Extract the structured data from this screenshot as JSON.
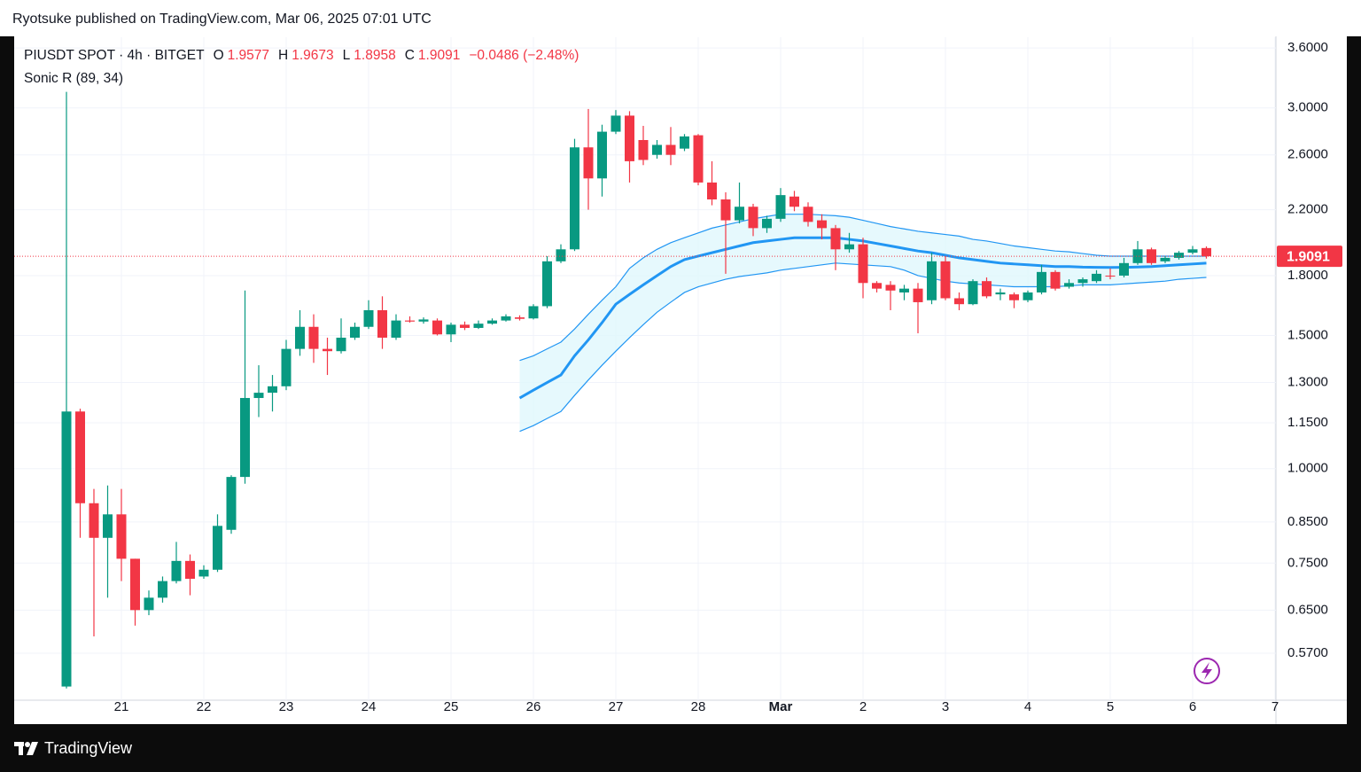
{
  "header": {
    "publisher": "Ryotsuke published on TradingView.com, Mar 06, 2025 07:01 UTC",
    "brand": "TradingView"
  },
  "chart_data": {
    "type": "candlestick",
    "symbol": "PIUSDT SPOT · 4h · BITGET",
    "ohlc_letters": [
      "O",
      "H",
      "L",
      "C"
    ],
    "change": "−0.0486 (−2.48%)",
    "indicator": "Sonic R (89, 34)",
    "log_scale": true,
    "grid": true,
    "up_color": "#089981",
    "down_color": "#f23645",
    "band_color": "#2196f3",
    "band_fill": "#e0f7fc",
    "ylim": [
      0.494,
      3.72
    ],
    "yticks": [
      {
        "value": 3.6,
        "label": "3.6000"
      },
      {
        "value": 3.0,
        "label": "3.0000"
      },
      {
        "value": 2.6,
        "label": "2.6000"
      },
      {
        "value": 2.2,
        "label": "2.2000"
      },
      {
        "value": 1.8,
        "label": "1.8000"
      },
      {
        "value": 1.5,
        "label": "1.5000"
      },
      {
        "value": 1.3,
        "label": "1.3000"
      },
      {
        "value": 1.15,
        "label": "1.1500"
      },
      {
        "value": 1.0,
        "label": "1.0000"
      },
      {
        "value": 0.85,
        "label": "0.8500"
      },
      {
        "value": 0.75,
        "label": "0.7500"
      },
      {
        "value": 0.65,
        "label": "0.6500"
      },
      {
        "value": 0.57,
        "label": "0.5700"
      }
    ],
    "categories": [
      null,
      null,
      null,
      null,
      "21",
      null,
      null,
      null,
      null,
      null,
      "22",
      null,
      null,
      null,
      null,
      null,
      "23",
      null,
      null,
      null,
      null,
      null,
      "24",
      null,
      null,
      null,
      null,
      null,
      "25",
      null,
      null,
      null,
      null,
      null,
      "26",
      null,
      null,
      null,
      null,
      null,
      "27",
      null,
      null,
      null,
      null,
      null,
      "28",
      null,
      null,
      null,
      null,
      null,
      "Mar",
      null,
      null,
      null,
      null,
      null,
      "2",
      null,
      null,
      null,
      null,
      null,
      "3",
      null,
      null,
      null,
      null,
      null,
      "4",
      null,
      null,
      null,
      null,
      null,
      "5",
      null,
      null,
      null,
      null,
      null,
      "6",
      null,
      null,
      null,
      null,
      null,
      "7"
    ],
    "open": [
      0.515,
      1.19,
      0.9,
      0.81,
      0.87,
      0.76,
      0.65,
      0.675,
      0.71,
      0.755,
      0.72,
      0.735,
      0.83,
      0.975,
      1.24,
      1.26,
      1.285,
      1.44,
      1.54,
      1.44,
      1.43,
      1.49,
      1.54,
      1.62,
      1.49,
      1.57,
      1.565,
      1.57,
      1.505,
      1.55,
      1.535,
      1.555,
      1.57,
      1.585,
      1.58,
      1.64,
      1.88,
      1.95,
      2.66,
      2.42,
      2.79,
      2.93,
      2.72,
      2.6,
      2.68,
      2.65,
      2.76,
      2.39,
      2.27,
      2.13,
      2.22,
      2.08,
      2.14,
      2.29,
      2.22,
      2.13,
      2.08,
      1.95,
      1.98,
      1.76,
      1.75,
      1.71,
      1.73,
      1.67,
      1.88,
      1.68,
      1.65,
      1.77,
      1.7,
      1.7,
      1.67,
      1.71,
      1.82,
      1.74,
      1.76,
      1.77,
      1.8,
      1.8,
      1.87,
      1.95,
      1.88,
      1.9,
      1.93,
      1.9577,
      null,
      null,
      null,
      null,
      null
    ],
    "high": [
      3.15,
      1.2,
      0.94,
      0.95,
      0.94,
      0.76,
      0.69,
      0.72,
      0.8,
      0.77,
      0.745,
      0.87,
      0.98,
      1.72,
      1.37,
      1.33,
      1.48,
      1.62,
      1.6,
      1.49,
      1.58,
      1.56,
      1.67,
      1.69,
      1.6,
      1.59,
      1.585,
      1.58,
      1.56,
      1.565,
      1.57,
      1.58,
      1.6,
      1.595,
      1.65,
      1.91,
      1.98,
      2.73,
      2.99,
      2.85,
      2.98,
      2.97,
      2.84,
      2.72,
      2.83,
      2.77,
      2.77,
      2.55,
      2.32,
      2.39,
      2.24,
      2.16,
      2.35,
      2.33,
      2.25,
      2.17,
      2.1,
      2.05,
      2.02,
      1.77,
      1.77,
      1.75,
      1.76,
      1.93,
      1.91,
      1.71,
      1.78,
      1.79,
      1.73,
      1.71,
      1.72,
      1.86,
      1.83,
      1.78,
      1.79,
      1.83,
      1.84,
      1.9,
      2.0,
      1.96,
      1.91,
      1.94,
      1.97,
      1.9673,
      null,
      null,
      null,
      null,
      null
    ],
    "low": [
      0.512,
      0.81,
      0.6,
      0.675,
      0.71,
      0.62,
      0.64,
      0.665,
      0.705,
      0.68,
      0.715,
      0.73,
      0.82,
      0.955,
      1.17,
      1.19,
      1.27,
      1.41,
      1.38,
      1.33,
      1.42,
      1.48,
      1.53,
      1.44,
      1.48,
      1.56,
      1.555,
      1.5,
      1.47,
      1.525,
      1.53,
      1.55,
      1.565,
      1.57,
      1.575,
      1.63,
      1.87,
      1.94,
      2.2,
      2.29,
      2.77,
      2.39,
      2.52,
      2.57,
      2.52,
      2.63,
      2.37,
      2.23,
      1.81,
      2.11,
      2.03,
      2.05,
      2.12,
      2.19,
      2.09,
      2.01,
      1.83,
      1.93,
      1.68,
      1.71,
      1.62,
      1.67,
      1.51,
      1.65,
      1.67,
      1.62,
      1.645,
      1.68,
      1.67,
      1.63,
      1.66,
      1.7,
      1.72,
      1.73,
      1.74,
      1.76,
      1.78,
      1.79,
      1.86,
      1.86,
      1.87,
      1.89,
      1.92,
      1.8958,
      null,
      null,
      null,
      null,
      null
    ],
    "close": [
      1.19,
      0.9,
      0.81,
      0.87,
      0.76,
      0.65,
      0.675,
      0.71,
      0.755,
      0.715,
      0.735,
      0.84,
      0.975,
      1.24,
      1.26,
      1.285,
      1.44,
      1.54,
      1.44,
      1.43,
      1.49,
      1.54,
      1.62,
      1.49,
      1.57,
      1.565,
      1.575,
      1.505,
      1.55,
      1.535,
      1.555,
      1.57,
      1.59,
      1.578,
      1.64,
      1.88,
      1.95,
      2.66,
      2.42,
      2.79,
      2.93,
      2.55,
      2.56,
      2.68,
      2.6,
      2.75,
      2.39,
      2.27,
      2.13,
      2.22,
      2.08,
      2.14,
      2.3,
      2.22,
      2.12,
      2.08,
      1.95,
      1.98,
      1.76,
      1.73,
      1.72,
      1.73,
      1.66,
      1.88,
      1.68,
      1.65,
      1.77,
      1.69,
      1.71,
      1.67,
      1.71,
      1.82,
      1.73,
      1.76,
      1.78,
      1.81,
      1.795,
      1.87,
      1.95,
      1.87,
      1.9,
      1.93,
      1.95,
      1.9091,
      null,
      null,
      null,
      null,
      null
    ],
    "band_upper": [
      null,
      null,
      null,
      null,
      null,
      null,
      null,
      null,
      null,
      null,
      null,
      null,
      null,
      null,
      null,
      null,
      null,
      null,
      null,
      null,
      null,
      null,
      null,
      null,
      null,
      null,
      null,
      null,
      null,
      null,
      null,
      null,
      null,
      1.39,
      1.41,
      1.44,
      1.47,
      1.53,
      1.6,
      1.67,
      1.74,
      1.84,
      1.9,
      1.95,
      1.99,
      2.02,
      2.05,
      2.08,
      2.1,
      2.12,
      2.14,
      2.155,
      2.17,
      2.17,
      2.17,
      2.165,
      2.16,
      2.15,
      2.13,
      2.11,
      2.09,
      2.075,
      2.06,
      2.05,
      2.04,
      2.03,
      2.01,
      2.0,
      1.985,
      1.97,
      1.96,
      1.95,
      1.94,
      1.935,
      1.925,
      1.915,
      1.91,
      1.91,
      1.91,
      1.91,
      1.91,
      1.91,
      1.91,
      1.91,
      null,
      null,
      null,
      null,
      null
    ],
    "band_middle": [
      null,
      null,
      null,
      null,
      null,
      null,
      null,
      null,
      null,
      null,
      null,
      null,
      null,
      null,
      null,
      null,
      null,
      null,
      null,
      null,
      null,
      null,
      null,
      null,
      null,
      null,
      null,
      null,
      null,
      null,
      null,
      null,
      null,
      1.24,
      1.27,
      1.3,
      1.33,
      1.41,
      1.48,
      1.56,
      1.65,
      1.7,
      1.75,
      1.8,
      1.85,
      1.89,
      1.91,
      1.93,
      1.95,
      1.97,
      1.99,
      2.0,
      2.01,
      2.02,
      2.02,
      2.02,
      2.02,
      2.01,
      2.0,
      1.985,
      1.97,
      1.955,
      1.94,
      1.93,
      1.915,
      1.9,
      1.89,
      1.88,
      1.87,
      1.865,
      1.86,
      1.855,
      1.85,
      1.85,
      1.847,
      1.846,
      1.845,
      1.846,
      1.848,
      1.85,
      1.855,
      1.86,
      1.865,
      1.87,
      null,
      null,
      null,
      null,
      null
    ],
    "band_lower": [
      null,
      null,
      null,
      null,
      null,
      null,
      null,
      null,
      null,
      null,
      null,
      null,
      null,
      null,
      null,
      null,
      null,
      null,
      null,
      null,
      null,
      null,
      null,
      null,
      null,
      null,
      null,
      null,
      null,
      null,
      null,
      null,
      null,
      1.12,
      1.14,
      1.165,
      1.19,
      1.25,
      1.31,
      1.37,
      1.43,
      1.49,
      1.55,
      1.61,
      1.66,
      1.71,
      1.74,
      1.76,
      1.78,
      1.795,
      1.805,
      1.815,
      1.83,
      1.84,
      1.85,
      1.86,
      1.87,
      1.865,
      1.86,
      1.855,
      1.85,
      1.83,
      1.8,
      1.785,
      1.77,
      1.76,
      1.755,
      1.75,
      1.745,
      1.74,
      1.74,
      1.74,
      1.74,
      1.745,
      1.75,
      1.75,
      1.75,
      1.755,
      1.76,
      1.765,
      1.77,
      1.78,
      1.785,
      1.79,
      null,
      null,
      null,
      null,
      null
    ]
  }
}
